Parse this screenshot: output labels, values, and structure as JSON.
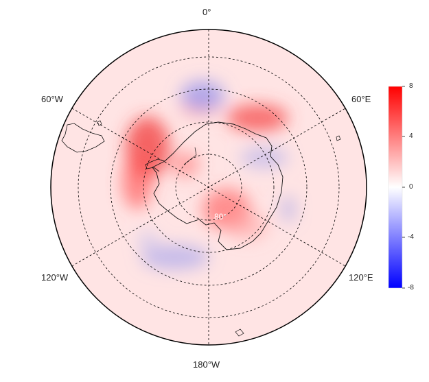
{
  "map": {
    "projection": "south-polar-stereographic",
    "lon_labels": {
      "top": "0°",
      "bottom": "180°W",
      "upper_left": "60°W",
      "upper_right": "60°E",
      "lower_left": "120°W",
      "lower_right": "120°E"
    },
    "lat_label": "80°",
    "graticule": "dashed"
  },
  "colorbar": {
    "ticks": [
      "8",
      "4",
      "0",
      "-4",
      "-8"
    ],
    "colors": {
      "max": "#ff0000",
      "mid": "#ffffff",
      "min": "#0000ff"
    }
  }
}
